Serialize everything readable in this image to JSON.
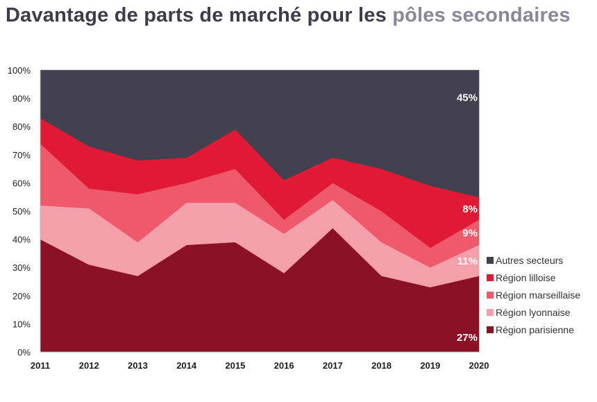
{
  "title": {
    "prefix": "Davantage de parts de marché pour les ",
    "highlight": "pôles secondaires"
  },
  "chart_data": {
    "type": "area",
    "stacked": true,
    "x": [
      "2011",
      "2012",
      "2013",
      "2014",
      "2015",
      "2016",
      "2017",
      "2018",
      "2019",
      "2020"
    ],
    "ylim": [
      0,
      100
    ],
    "y_ticks": [
      "0%",
      "10%",
      "20%",
      "30%",
      "40%",
      "50%",
      "60%",
      "70%",
      "80%",
      "90%",
      "100%"
    ],
    "series": [
      {
        "name": "Région parisienne",
        "color": "#8b1224",
        "values": [
          40,
          31,
          27,
          38,
          39,
          28,
          44,
          27,
          23,
          27
        ]
      },
      {
        "name": "Région lyonnaise",
        "color": "#f4a0aa",
        "values": [
          12,
          20,
          12,
          15,
          14,
          14,
          10,
          12,
          7,
          11
        ]
      },
      {
        "name": "Région marseillaise",
        "color": "#ee5a6c",
        "values": [
          22,
          7,
          17,
          7,
          12,
          5,
          6,
          11,
          7,
          9
        ]
      },
      {
        "name": "Région lilloise",
        "color": "#e01a35",
        "values": [
          9,
          15,
          12,
          9,
          14,
          14,
          9,
          15,
          22,
          8
        ]
      },
      {
        "name": "Autres secteurs",
        "color": "#43404f",
        "values": [
          17,
          27,
          32,
          31,
          21,
          39,
          31,
          35,
          41,
          45
        ]
      }
    ],
    "data_labels": [
      {
        "series": "Autres secteurs",
        "text": "45%"
      },
      {
        "series": "Région lilloise",
        "text": "8%"
      },
      {
        "series": "Région marseillaise",
        "text": "9%"
      },
      {
        "series": "Région lyonnaise",
        "text": "11%"
      },
      {
        "series": "Région parisienne",
        "text": "27%"
      }
    ],
    "legend": {
      "position": "right",
      "order": [
        "Autres secteurs",
        "Région lilloise",
        "Région marseillaise",
        "Région lyonnaise",
        "Région parisienne"
      ]
    },
    "grid": false
  }
}
